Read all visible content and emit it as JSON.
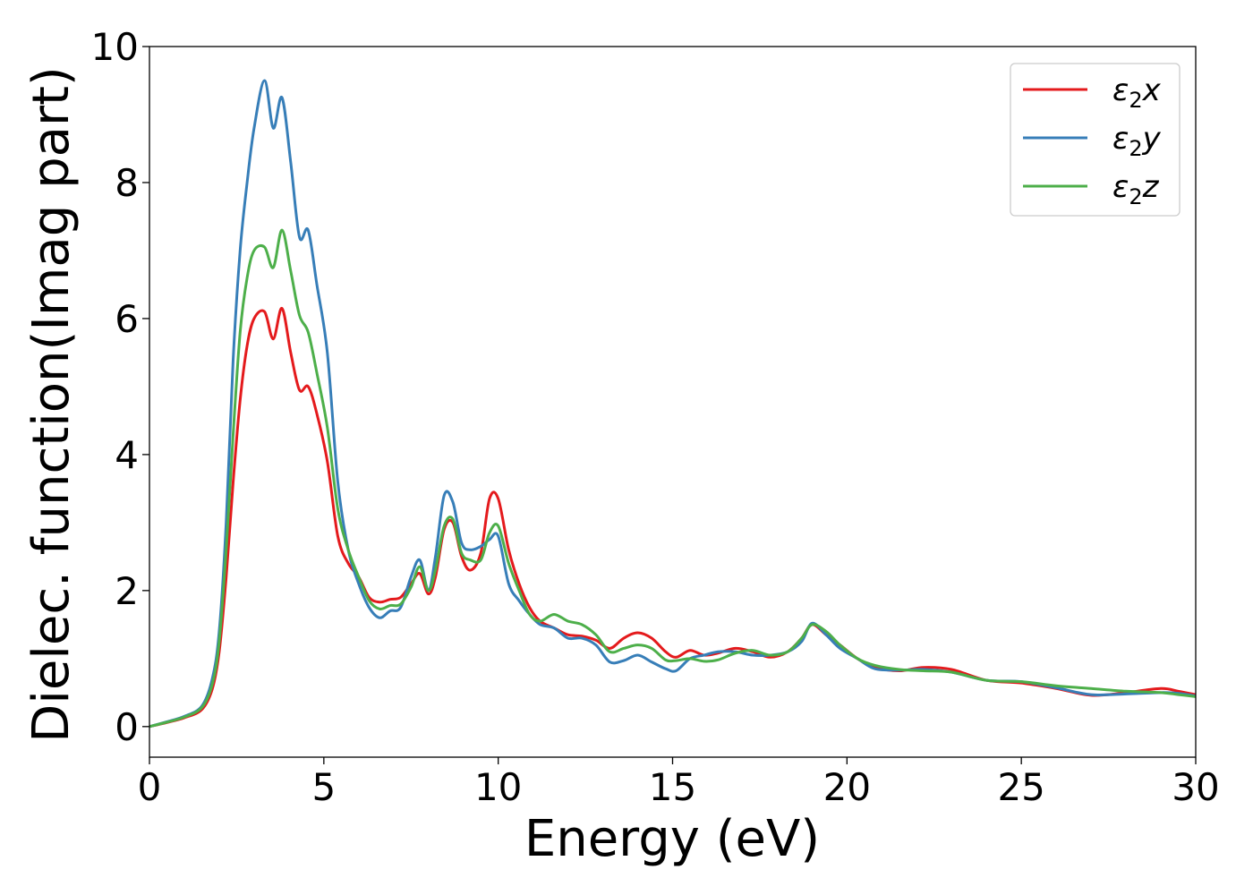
{
  "chart_data": {
    "type": "line",
    "title": "",
    "xlabel": "Energy (eV)",
    "ylabel": "Dielec. function(Imag part)",
    "xlim": [
      0,
      30
    ],
    "ylim": [
      -0.45,
      10
    ],
    "x_ticks": [
      0,
      5,
      10,
      15,
      20,
      25,
      30
    ],
    "y_ticks": [
      0,
      2,
      4,
      6,
      8,
      10
    ],
    "x_tick_labels": [
      "0",
      "5",
      "10",
      "15",
      "20",
      "25",
      "30"
    ],
    "y_tick_labels": [
      "0",
      "2",
      "4",
      "6",
      "8",
      "10"
    ],
    "grid": false,
    "legend_position": "top-right",
    "series": [
      {
        "name": "ε₂x",
        "legend_base": "ε",
        "legend_sub": "2",
        "legend_suffix": "x",
        "color": "#e41a1c",
        "x": [
          0,
          0.5,
          1.0,
          1.5,
          1.8,
          2.0,
          2.2,
          2.4,
          2.6,
          2.8,
          3.0,
          3.3,
          3.55,
          3.8,
          4.05,
          4.3,
          4.55,
          4.8,
          5.1,
          5.4,
          5.7,
          6.0,
          6.3,
          6.6,
          6.9,
          7.2,
          7.5,
          7.75,
          8.0,
          8.2,
          8.45,
          8.7,
          8.95,
          9.2,
          9.5,
          9.75,
          10.0,
          10.3,
          10.6,
          10.9,
          11.2,
          11.6,
          12.0,
          12.4,
          12.8,
          13.2,
          13.6,
          14.0,
          14.4,
          14.8,
          15.1,
          15.5,
          15.9,
          16.3,
          16.8,
          17.3,
          17.8,
          18.3,
          18.7,
          19.0,
          19.4,
          19.8,
          20.3,
          20.8,
          21.5,
          22.2,
          23.0,
          24.0,
          25.0,
          26.0,
          27.0,
          28.0,
          29.0,
          29.5,
          30.0
        ],
        "y": [
          0,
          0.06,
          0.13,
          0.25,
          0.55,
          1.1,
          2.2,
          3.6,
          4.8,
          5.6,
          6.0,
          6.1,
          5.7,
          6.15,
          5.5,
          4.95,
          5.0,
          4.6,
          3.9,
          2.8,
          2.4,
          2.2,
          1.9,
          1.83,
          1.87,
          1.9,
          2.1,
          2.25,
          1.95,
          2.2,
          2.9,
          3.0,
          2.5,
          2.3,
          2.55,
          3.35,
          3.35,
          2.6,
          2.1,
          1.75,
          1.55,
          1.45,
          1.35,
          1.33,
          1.27,
          1.15,
          1.3,
          1.38,
          1.3,
          1.1,
          1.02,
          1.12,
          1.05,
          1.08,
          1.15,
          1.1,
          1.02,
          1.1,
          1.3,
          1.5,
          1.35,
          1.2,
          1.0,
          0.87,
          0.82,
          0.87,
          0.84,
          0.68,
          0.64,
          0.56,
          0.46,
          0.5,
          0.56,
          0.52,
          0.47
        ]
      },
      {
        "name": "ε₂y",
        "legend_base": "ε",
        "legend_sub": "2",
        "legend_suffix": "y",
        "color": "#377eb8",
        "x": [
          0,
          0.5,
          1.0,
          1.5,
          1.8,
          2.0,
          2.2,
          2.4,
          2.6,
          2.8,
          3.0,
          3.3,
          3.55,
          3.8,
          4.05,
          4.3,
          4.55,
          4.8,
          5.1,
          5.4,
          5.7,
          6.0,
          6.3,
          6.6,
          6.9,
          7.2,
          7.5,
          7.75,
          8.0,
          8.2,
          8.45,
          8.7,
          8.95,
          9.2,
          9.5,
          9.75,
          10.0,
          10.3,
          10.6,
          10.9,
          11.2,
          11.6,
          12.0,
          12.4,
          12.8,
          13.2,
          13.6,
          14.0,
          14.4,
          14.8,
          15.1,
          15.5,
          15.9,
          16.3,
          16.8,
          17.3,
          17.8,
          18.3,
          18.7,
          19.0,
          19.4,
          19.8,
          20.3,
          20.8,
          21.5,
          22.2,
          23.0,
          24.0,
          25.0,
          26.0,
          27.0,
          28.0,
          29.0,
          29.5,
          30.0
        ],
        "y": [
          0,
          0.07,
          0.15,
          0.3,
          0.7,
          1.4,
          3.0,
          5.4,
          7.0,
          8.0,
          8.8,
          9.5,
          8.8,
          9.25,
          8.3,
          7.2,
          7.3,
          6.5,
          5.5,
          3.6,
          2.6,
          2.1,
          1.75,
          1.6,
          1.7,
          1.75,
          2.2,
          2.45,
          2.0,
          2.5,
          3.4,
          3.3,
          2.7,
          2.6,
          2.65,
          2.75,
          2.8,
          2.1,
          1.85,
          1.65,
          1.5,
          1.45,
          1.3,
          1.3,
          1.2,
          0.95,
          0.97,
          1.05,
          0.95,
          0.85,
          0.82,
          1.0,
          1.05,
          1.1,
          1.1,
          1.05,
          1.05,
          1.1,
          1.25,
          1.52,
          1.35,
          1.15,
          1.0,
          0.85,
          0.83,
          0.84,
          0.8,
          0.68,
          0.66,
          0.57,
          0.47,
          0.48,
          0.5,
          0.49,
          0.45
        ]
      },
      {
        "name": "ε₂z",
        "legend_base": "ε",
        "legend_sub": "2",
        "legend_suffix": "z",
        "color": "#4daf4a",
        "x": [
          0,
          0.5,
          1.0,
          1.5,
          1.8,
          2.0,
          2.2,
          2.4,
          2.6,
          2.8,
          3.0,
          3.3,
          3.55,
          3.8,
          4.05,
          4.3,
          4.55,
          4.8,
          5.1,
          5.4,
          5.7,
          6.0,
          6.3,
          6.6,
          6.9,
          7.2,
          7.5,
          7.75,
          8.0,
          8.2,
          8.45,
          8.7,
          8.95,
          9.2,
          9.5,
          9.75,
          10.0,
          10.3,
          10.6,
          10.9,
          11.2,
          11.6,
          12.0,
          12.4,
          12.8,
          13.2,
          13.6,
          14.0,
          14.4,
          14.8,
          15.1,
          15.5,
          15.9,
          16.3,
          16.8,
          17.3,
          17.8,
          18.3,
          18.7,
          19.0,
          19.4,
          19.8,
          20.3,
          20.8,
          21.5,
          22.2,
          23.0,
          24.0,
          25.0,
          26.0,
          27.0,
          28.0,
          29.0,
          29.5,
          30.0
        ],
        "y": [
          0,
          0.065,
          0.14,
          0.28,
          0.62,
          1.25,
          2.6,
          4.3,
          5.8,
          6.6,
          7.0,
          7.05,
          6.75,
          7.3,
          6.7,
          6.05,
          5.8,
          5.2,
          4.4,
          3.2,
          2.6,
          2.2,
          1.85,
          1.73,
          1.78,
          1.8,
          2.05,
          2.35,
          2.0,
          2.3,
          2.95,
          3.05,
          2.55,
          2.45,
          2.45,
          2.85,
          2.95,
          2.4,
          2.0,
          1.65,
          1.55,
          1.65,
          1.55,
          1.5,
          1.35,
          1.1,
          1.15,
          1.2,
          1.15,
          0.98,
          0.97,
          1.0,
          0.96,
          0.98,
          1.08,
          1.12,
          1.05,
          1.1,
          1.3,
          1.5,
          1.4,
          1.2,
          1.0,
          0.9,
          0.84,
          0.82,
          0.8,
          0.68,
          0.66,
          0.6,
          0.56,
          0.52,
          0.5,
          0.47,
          0.44
        ]
      }
    ]
  }
}
